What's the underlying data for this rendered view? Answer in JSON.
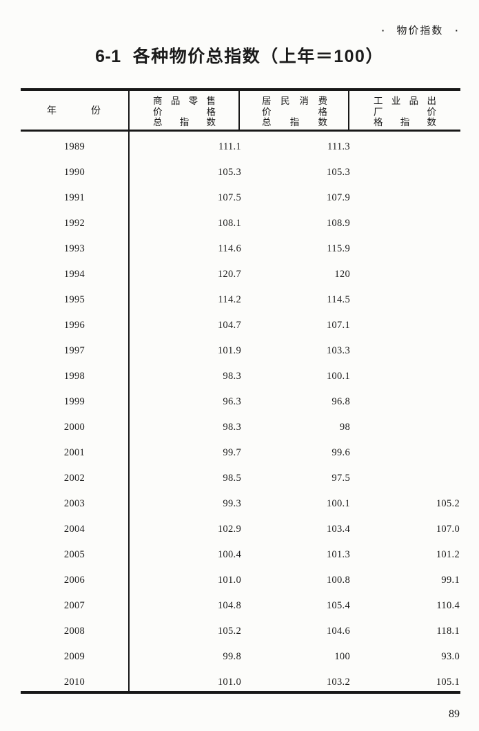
{
  "page": {
    "corner_label": {
      "left_dot": "·",
      "text": "物价指数",
      "right_dot": "·"
    },
    "title": {
      "number": "6-1",
      "text": "各种物价总指数（上年＝100）"
    },
    "page_number": "89"
  },
  "table": {
    "header": {
      "year": "年份",
      "retail": {
        "full_name": "商品零售价格总指数",
        "lines": [
          "商品零售",
          "价格",
          "总指数"
        ]
      },
      "cpi": {
        "full_name": "居民消费价格总指数",
        "lines": [
          "居民消费",
          "价格",
          "总指数"
        ]
      },
      "ppi": {
        "full_name": "工业品出厂价格指数",
        "lines": [
          "工业品出",
          "厂价",
          "格指数"
        ]
      }
    },
    "rows": [
      {
        "year": "1989",
        "retail": "111.1",
        "cpi": "111.3",
        "ppi": ""
      },
      {
        "year": "1990",
        "retail": "105.3",
        "cpi": "105.3",
        "ppi": ""
      },
      {
        "year": "1991",
        "retail": "107.5",
        "cpi": "107.9",
        "ppi": ""
      },
      {
        "year": "1992",
        "retail": "108.1",
        "cpi": "108.9",
        "ppi": ""
      },
      {
        "year": "1993",
        "retail": "114.6",
        "cpi": "115.9",
        "ppi": ""
      },
      {
        "year": "1994",
        "retail": "120.7",
        "cpi": "120",
        "ppi": ""
      },
      {
        "year": "1995",
        "retail": "114.2",
        "cpi": "114.5",
        "ppi": ""
      },
      {
        "year": "1996",
        "retail": "104.7",
        "cpi": "107.1",
        "ppi": ""
      },
      {
        "year": "1997",
        "retail": "101.9",
        "cpi": "103.3",
        "ppi": ""
      },
      {
        "year": "1998",
        "retail": "98.3",
        "cpi": "100.1",
        "ppi": ""
      },
      {
        "year": "1999",
        "retail": "96.3",
        "cpi": "96.8",
        "ppi": ""
      },
      {
        "year": "2000",
        "retail": "98.3",
        "cpi": "98",
        "ppi": ""
      },
      {
        "year": "2001",
        "retail": "99.7",
        "cpi": "99.6",
        "ppi": ""
      },
      {
        "year": "2002",
        "retail": "98.5",
        "cpi": "97.5",
        "ppi": ""
      },
      {
        "year": "2003",
        "retail": "99.3",
        "cpi": "100.1",
        "ppi": "105.2"
      },
      {
        "year": "2004",
        "retail": "102.9",
        "cpi": "103.4",
        "ppi": "107.0"
      },
      {
        "year": "2005",
        "retail": "100.4",
        "cpi": "101.3",
        "ppi": "101.2"
      },
      {
        "year": "2006",
        "retail": "101.0",
        "cpi": "100.8",
        "ppi": "99.1"
      },
      {
        "year": "2007",
        "retail": "104.8",
        "cpi": "105.4",
        "ppi": "110.4"
      },
      {
        "year": "2008",
        "retail": "105.2",
        "cpi": "104.6",
        "ppi": "118.1"
      },
      {
        "year": "2009",
        "retail": "99.8",
        "cpi": "100",
        "ppi": "93.0"
      },
      {
        "year": "2010",
        "retail": "101.0",
        "cpi": "103.2",
        "ppi": "105.1"
      }
    ]
  }
}
